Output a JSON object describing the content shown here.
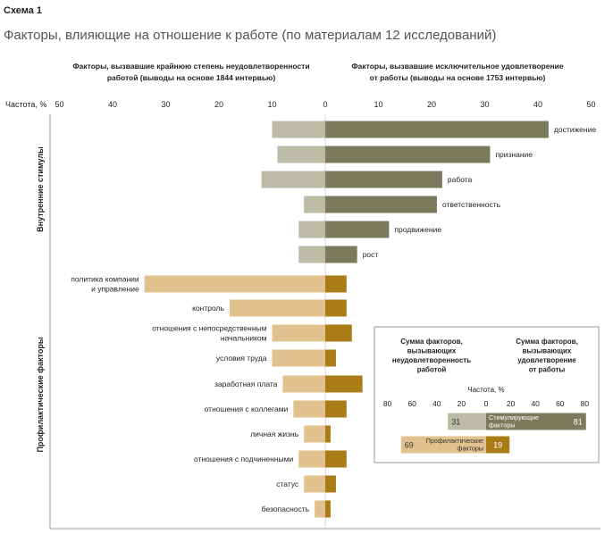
{
  "scheme_label": "Схема 1",
  "title": "Факторы, влияющие на отношение к работе (по материалам 12 исследований)",
  "colors": {
    "motivator_dark": "#7c7a5c",
    "motivator_light": "#bcbba6",
    "hygiene_dark": "#a97c16",
    "hygiene_light": "#e1c28e",
    "frame": "#999999",
    "text": "#222222"
  },
  "chart_data": [
    {
      "type": "bar",
      "orientation": "horizontal-diverging",
      "left_header": [
        "Факторы, вызвавшие крайнюю степень неудовлетворенности",
        "работой (выводы на основе 1844 интервью)"
      ],
      "right_header": [
        "Факторы, вызвавшие исключительное удовлетворение",
        "от работы (выводы на основе 1753 интервью)"
      ],
      "axis_label": "Частота, %",
      "ticks": [
        "50",
        "40",
        "30",
        "20",
        "10",
        "0",
        "10",
        "20",
        "30",
        "40",
        "50"
      ],
      "xlim": [
        -50,
        50
      ],
      "groups": [
        {
          "name": "Внутренние стимулы",
          "factors": [
            {
              "label": [
                "достижение"
              ],
              "label_side": "right",
              "dissatisfaction": 10,
              "satisfaction": 42
            },
            {
              "label": [
                "признание"
              ],
              "label_side": "right",
              "dissatisfaction": 9,
              "satisfaction": 31
            },
            {
              "label": [
                "работа"
              ],
              "label_side": "right",
              "dissatisfaction": 12,
              "satisfaction": 22
            },
            {
              "label": [
                "ответственность"
              ],
              "label_side": "right",
              "dissatisfaction": 4,
              "satisfaction": 21
            },
            {
              "label": [
                "продвижение"
              ],
              "label_side": "right",
              "dissatisfaction": 5,
              "satisfaction": 12
            },
            {
              "label": [
                "рост"
              ],
              "label_side": "right",
              "dissatisfaction": 5,
              "satisfaction": 6
            }
          ]
        },
        {
          "name": "Профилактические факторы",
          "factors": [
            {
              "label": [
                "политика компании",
                "и управление"
              ],
              "label_side": "left",
              "dissatisfaction": 34,
              "satisfaction": 4
            },
            {
              "label": [
                "контроль"
              ],
              "label_side": "left",
              "dissatisfaction": 18,
              "satisfaction": 4
            },
            {
              "label": [
                "отношения с непосредственным",
                "начальником"
              ],
              "label_side": "left",
              "dissatisfaction": 10,
              "satisfaction": 5
            },
            {
              "label": [
                "условия труда"
              ],
              "label_side": "left",
              "dissatisfaction": 10,
              "satisfaction": 2
            },
            {
              "label": [
                "заработная плата"
              ],
              "label_side": "left",
              "dissatisfaction": 8,
              "satisfaction": 7
            },
            {
              "label": [
                "отношения с коллегами"
              ],
              "label_side": "left",
              "dissatisfaction": 6,
              "satisfaction": 4
            },
            {
              "label": [
                "личная жизнь"
              ],
              "label_side": "left",
              "dissatisfaction": 4,
              "satisfaction": 1
            },
            {
              "label": [
                "отношения с подчиненными"
              ],
              "label_side": "left",
              "dissatisfaction": 5,
              "satisfaction": 4
            },
            {
              "label": [
                "статус"
              ],
              "label_side": "left",
              "dissatisfaction": 4,
              "satisfaction": 2
            },
            {
              "label": [
                "безопасность"
              ],
              "label_side": "left",
              "dissatisfaction": 2,
              "satisfaction": 1
            }
          ]
        }
      ]
    },
    {
      "type": "bar",
      "orientation": "horizontal-diverging",
      "left_header": [
        "Сумма факторов,",
        "вызывающих",
        "неудовлетворенность",
        "работой"
      ],
      "right_header": [
        "Сумма факторов,",
        "вызывающих",
        "удовлетворение",
        "от работы"
      ],
      "axis_label": "Частота, %",
      "ticks": [
        "80",
        "60",
        "40",
        "20",
        "0",
        "20",
        "40",
        "60",
        "80"
      ],
      "xlim": [
        -80,
        80
      ],
      "series": [
        {
          "name": [
            "Стимулирующие",
            "факторы"
          ],
          "dissatisfaction": 31,
          "satisfaction": 81
        },
        {
          "name": [
            "Профилактические",
            "факторы"
          ],
          "dissatisfaction": 69,
          "satisfaction": 19
        }
      ]
    }
  ]
}
